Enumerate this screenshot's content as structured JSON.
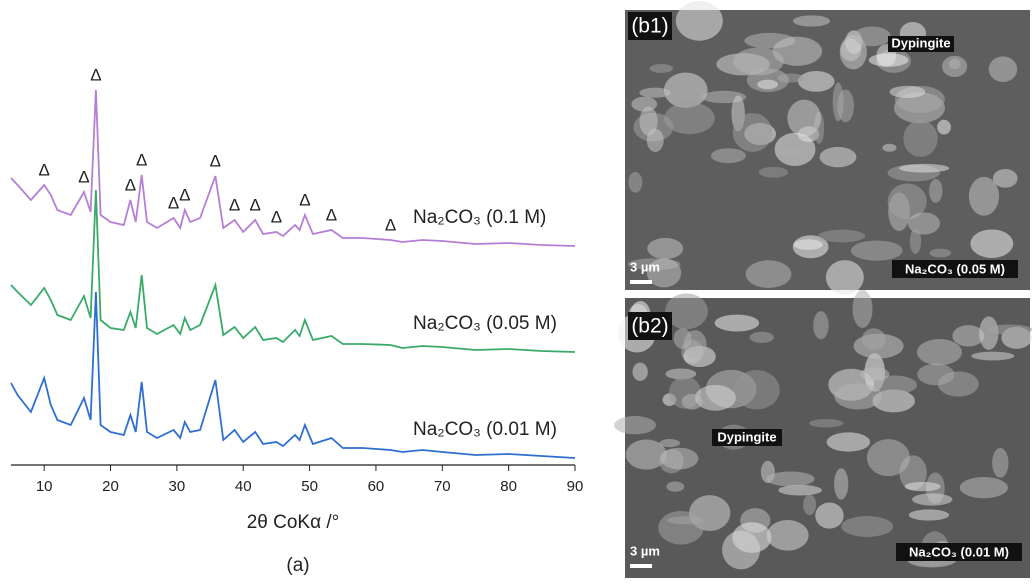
{
  "chart_data": {
    "type": "line",
    "xlabel": "2θ CoKα /°",
    "caption": "(a)",
    "xlim": [
      5,
      90
    ],
    "xticks": [
      10,
      20,
      30,
      40,
      50,
      60,
      70,
      80,
      90
    ],
    "ylim": [
      0,
      430
    ],
    "x": [
      5,
      6,
      8,
      10,
      11,
      12,
      14,
      16,
      17,
      17.8,
      18.5,
      20,
      22,
      23,
      23.8,
      24.7,
      25.5,
      27,
      29.5,
      30.5,
      31.2,
      32,
      33.5,
      35.8,
      37,
      38.7,
      40,
      41.8,
      43,
      45,
      46,
      47.8,
      48.5,
      49.3,
      50.5,
      53.3,
      55,
      58,
      62.2,
      64,
      67,
      70,
      75,
      80,
      85,
      90
    ],
    "series": [
      {
        "name": "Na₂CO₃ (0.1 M)",
        "color": "#b57fd6",
        "values": [
          287,
          280,
          265,
          280,
          270,
          255,
          250,
          273,
          253,
          375,
          250,
          243,
          240,
          265,
          243,
          290,
          243,
          237,
          247,
          237,
          255,
          243,
          247,
          289,
          237,
          245,
          233,
          245,
          231,
          233,
          229,
          240,
          235,
          250,
          231,
          235,
          227,
          227,
          225,
          223,
          225,
          224,
          221,
          222,
          220,
          219
        ]
      },
      {
        "name": "Na₂CO₃ (0.05 M)",
        "color": "#3aaa6a",
        "values": [
          180,
          173,
          160,
          177,
          165,
          150,
          145,
          169,
          147,
          275,
          145,
          137,
          135,
          153,
          137,
          190,
          137,
          131,
          140,
          131,
          147,
          135,
          140,
          180,
          130,
          138,
          127,
          138,
          125,
          127,
          123,
          135,
          129,
          145,
          125,
          129,
          121,
          121,
          120,
          117,
          119,
          118,
          115,
          116,
          114,
          113
        ]
      },
      {
        "name": "Na₂CO₃ (0.01 M)",
        "color": "#2f6fd0",
        "values": [
          82,
          70,
          53,
          87,
          60,
          45,
          40,
          67,
          45,
          173,
          40,
          33,
          30,
          50,
          33,
          83,
          33,
          27,
          35,
          27,
          43,
          33,
          35,
          85,
          25,
          35,
          23,
          33,
          21,
          23,
          19,
          30,
          25,
          40,
          21,
          27,
          17,
          17,
          15,
          13,
          15,
          13,
          10,
          11,
          9,
          7
        ]
      }
    ],
    "annotations": {
      "text": "Δ",
      "x": [
        10,
        16,
        17.8,
        23,
        24.7,
        29.5,
        31.2,
        35.8,
        38.7,
        41.8,
        45,
        49.3,
        53.3,
        62.2
      ]
    }
  },
  "panels": [
    {
      "label": "(b1)",
      "annotation": "Dypingite",
      "scale_bar": "3 µm",
      "sample": "Na₂CO₃ (0.05 M)"
    },
    {
      "label": "(b2)",
      "annotation": "Dypingite",
      "scale_bar": "3 µm",
      "sample": "Na₂CO₃ (0.01 M)"
    }
  ]
}
